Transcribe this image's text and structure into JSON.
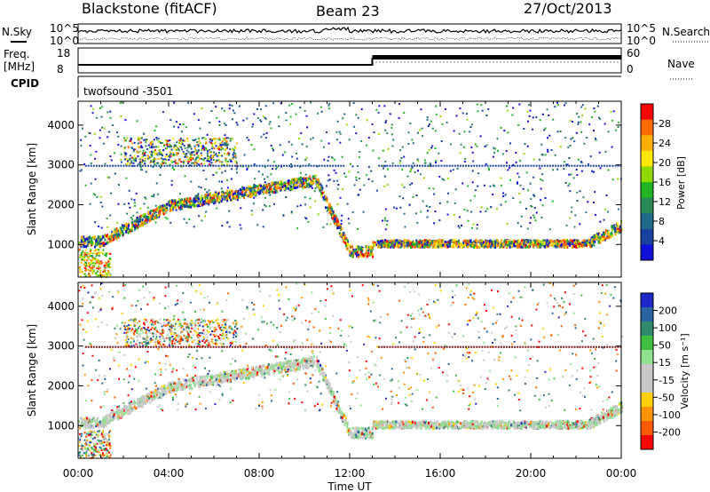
{
  "header": {
    "radar": "Blackstone (fitACF)",
    "beam": "Beam 23",
    "date": "27/Oct/2013"
  },
  "noise_panel": {
    "left_label": "N.Sky",
    "right_label": "N.Search",
    "ticks_left": [
      "10^5",
      "10^0"
    ],
    "ticks_right": [
      "10^5",
      "10^0"
    ]
  },
  "freq_panel": {
    "left_label_1": "Freq.",
    "left_label_2": "[MHz]",
    "right_label": "Nave",
    "ticks_left": [
      "18",
      "8"
    ],
    "ticks_right": [
      "60",
      "0"
    ]
  },
  "cpid_panel": {
    "left_label": "CPID",
    "program": "twofsound  -3501"
  },
  "colorbars": {
    "power": {
      "title": "Power [dB]",
      "ticks": [
        "28",
        "24",
        "20",
        "16",
        "12",
        "8",
        "4"
      ],
      "colors": [
        "#ff0000",
        "#ff6a00",
        "#ffb000",
        "#ffe800",
        "#8fd800",
        "#22b422",
        "#2a8a55",
        "#1f6a8a",
        "#18429e",
        "#1010d8"
      ]
    },
    "velocity": {
      "title": "Velocity [m s⁻¹]",
      "ticks": [
        "200",
        "100",
        "50",
        "15",
        "-15",
        "-50",
        "-100",
        "-200"
      ],
      "colors": [
        "#1e28c8",
        "#2a63a0",
        "#2f8a6e",
        "#3fbf3f",
        "#8fe08f",
        "#c8c8c8",
        "#c8c8c8",
        "#ffd000",
        "#ff9400",
        "#ff5a00",
        "#ff0000"
      ]
    }
  },
  "chart_data": [
    {
      "type": "heatmap",
      "name": "power",
      "ylabel": "Slant Range [km]",
      "xlabel": "Time UT",
      "x_ticks": [
        "00:00",
        "04:00",
        "08:00",
        "12:00",
        "16:00",
        "20:00",
        "00:00"
      ],
      "y_ticks": [
        "1000",
        "2000",
        "3000",
        "4000"
      ],
      "xlim": [
        0,
        24
      ],
      "ylim": [
        180,
        4600
      ],
      "colorbar": "Power [dB]",
      "grid": false
    },
    {
      "type": "heatmap",
      "name": "velocity",
      "ylabel": "Slant Range [km]",
      "xlabel": "Time UT",
      "x_ticks": [
        "00:00",
        "04:00",
        "08:00",
        "12:00",
        "16:00",
        "20:00",
        "00:00"
      ],
      "y_ticks": [
        "1000",
        "2000",
        "3000",
        "4000"
      ],
      "xlim": [
        0,
        24
      ],
      "ylim": [
        180,
        4600
      ],
      "colorbar": "Velocity [m s⁻¹]",
      "grid": false
    }
  ],
  "axes": {
    "xlabel": "Time UT"
  }
}
